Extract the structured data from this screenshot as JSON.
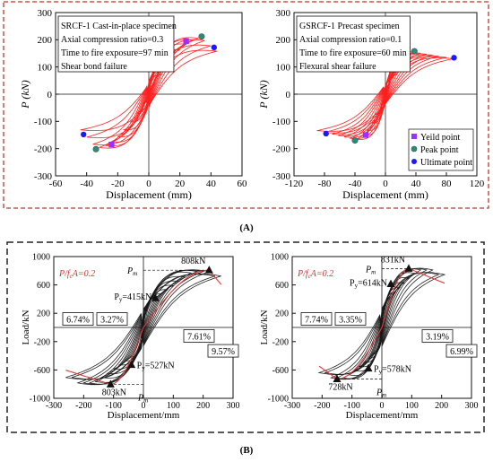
{
  "panels": {
    "A": {
      "label": "(A)"
    },
    "B": {
      "label": "(B)"
    }
  },
  "colors": {
    "curve_red": "#ff2020",
    "envelope_red": "#e03a3a",
    "hyst_black": "#1a1a1a",
    "frame_red": "#c0392b",
    "yield_marker": "#9b30ff",
    "peak_marker": "#2e8b7a",
    "ultimate_marker": "#1a1aff",
    "ratio_text": "#e03030"
  },
  "chart_data": [
    {
      "id": "A-left",
      "type": "line",
      "subtype": "hysteresis",
      "title": "",
      "xlabel": "Displacement (mm)",
      "ylabel": "P (kN)",
      "xlim": [
        -60,
        60
      ],
      "ylim": [
        -300,
        300
      ],
      "xticks": [
        -60,
        -40,
        -20,
        0,
        20,
        40,
        60
      ],
      "yticks": [
        -300,
        -200,
        -100,
        0,
        100,
        200,
        300
      ],
      "annotation": [
        "SRCF-1 Cast-in-place specimen",
        "Axial compression ratio=0.3",
        "Time to fire exposure=97 min",
        "Shear bond failure"
      ],
      "cycle_amplitudes_mm": [
        4,
        8,
        12,
        16,
        20,
        24,
        28,
        32,
        36,
        40,
        44
      ],
      "yield_point": [
        [
          24,
          195
        ],
        [
          -24,
          -185
        ]
      ],
      "peak_point": [
        [
          34,
          212
        ],
        [
          -34,
          -202
        ]
      ],
      "ultimate_point": [
        [
          42,
          172
        ],
        [
          -42,
          -148
        ]
      ],
      "legend": []
    },
    {
      "id": "A-right",
      "type": "line",
      "subtype": "hysteresis",
      "title": "",
      "xlabel": "Displacement (mm)",
      "ylabel": "P (kN)",
      "xlim": [
        -120,
        120
      ],
      "ylim": [
        -300,
        300
      ],
      "xticks": [
        -120,
        -80,
        -40,
        0,
        40,
        80,
        120
      ],
      "yticks": [
        -300,
        -200,
        -100,
        0,
        100,
        200,
        300
      ],
      "annotation": [
        "GSRCF-1 Precast specimen",
        "Axial compression ratio=0.1",
        "Time to fire exposure=60 min",
        "Flexural shear failure"
      ],
      "cycle_amplitudes_mm": [
        6,
        12,
        18,
        24,
        30,
        38,
        46,
        54,
        62,
        70,
        80,
        90
      ],
      "yield_point": [
        [
          22,
          145
        ],
        [
          -26,
          -150
        ]
      ],
      "peak_point": [
        [
          38,
          158
        ],
        [
          -40,
          -170
        ]
      ],
      "ultimate_point": [
        [
          90,
          134
        ],
        [
          -78,
          -145
        ]
      ],
      "legend": [
        "Yeild point",
        "Peak point",
        "Ultimate point"
      ]
    },
    {
      "id": "B-left",
      "type": "line",
      "subtype": "hysteresis",
      "title": "",
      "xlabel": "Displacement/mm",
      "ylabel": "Load/kN",
      "xlim": [
        -300,
        300
      ],
      "ylim": [
        -1000,
        1000
      ],
      "xticks": [
        -300,
        -200,
        -100,
        0,
        100,
        200,
        300
      ],
      "yticks": [
        -1000,
        -600,
        -200,
        200,
        600,
        1000
      ],
      "ratio_label_prefix": "P/f",
      "ratio_label_sub": "c",
      "ratio_label_suffix": "A=0.2",
      "cycle_amplitudes_mm": [
        20,
        40,
        60,
        80,
        100,
        120,
        140,
        160,
        180,
        200,
        220,
        240,
        260
      ],
      "pos_yield": [
        40,
        415
      ],
      "pos_peak": [
        220,
        808
      ],
      "neg_yield": [
        -40,
        -527
      ],
      "neg_peak": [
        -110,
        -803
      ],
      "labels": {
        "pos_peak": "808kN",
        "pos_yield": "415kN",
        "neg_yield": "527kN",
        "neg_peak": "803kN",
        "pm": "P",
        "pm_sub": "m",
        "py": "P",
        "py_sub": "y",
        "eq": "="
      },
      "pct_boxes": [
        "6.74%",
        "3.27%",
        "7.61%",
        "9.57%"
      ]
    },
    {
      "id": "B-right",
      "type": "line",
      "subtype": "hysteresis",
      "title": "",
      "xlabel": "Displacement/mm",
      "ylabel": "Load/kN",
      "xlim": [
        -300,
        300
      ],
      "ylim": [
        -1000,
        1000
      ],
      "xticks": [
        -300,
        -200,
        -100,
        0,
        100,
        200,
        300
      ],
      "yticks": [
        -1000,
        -600,
        -200,
        200,
        600,
        1000
      ],
      "ratio_label_prefix": "P/f",
      "ratio_label_sub": "c",
      "ratio_label_suffix": "A=0.2",
      "cycle_amplitudes_mm": [
        15,
        30,
        45,
        60,
        75,
        90,
        110,
        130,
        150,
        170,
        190,
        210
      ],
      "pos_yield": [
        30,
        614
      ],
      "pos_peak": [
        90,
        831
      ],
      "neg_yield": [
        -45,
        -578
      ],
      "neg_peak": [
        -150,
        -728
      ],
      "labels": {
        "pos_peak": "831kN",
        "pos_yield": "614kN",
        "neg_yield": "578kN",
        "neg_peak": "728kN",
        "pm": "P",
        "pm_sub": "m",
        "py": "P",
        "py_sub": "y",
        "eq": "="
      },
      "pct_boxes": [
        "7.74%",
        "3.35%",
        "3.19%",
        "6.99%"
      ]
    }
  ]
}
